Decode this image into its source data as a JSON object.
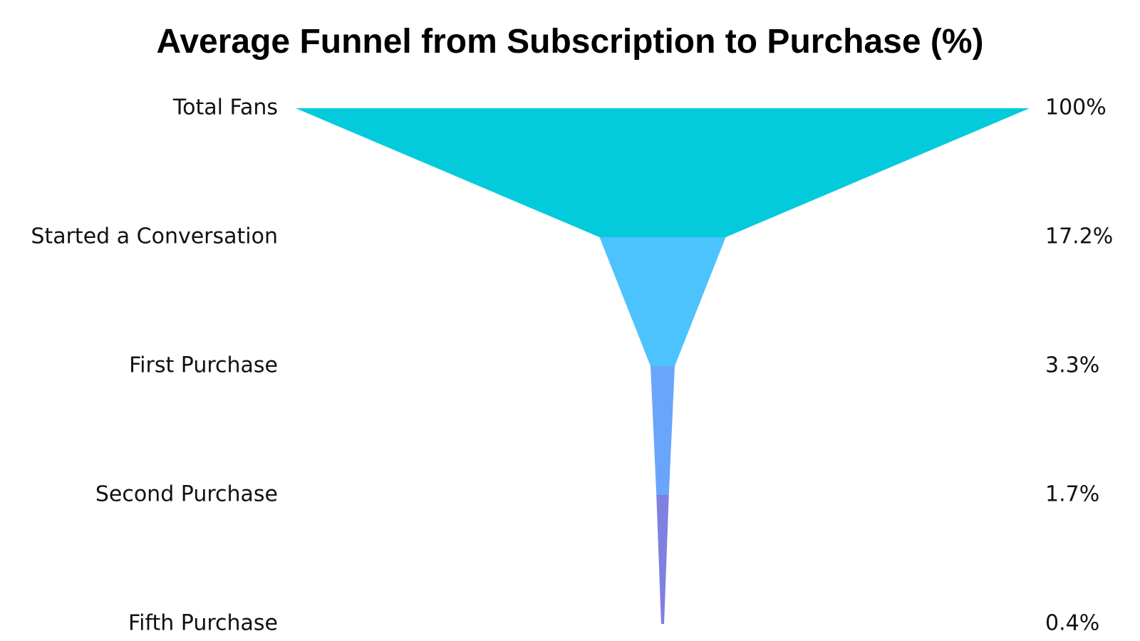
{
  "chart_data": {
    "type": "funnel",
    "title": "Average Funnel from Subscription to Purchase (%)",
    "categories": [
      "Total Fans",
      "Started a Conversation",
      "First Purchase",
      "Second Purchase",
      "Fifth Purchase"
    ],
    "values": [
      100,
      17.2,
      3.3,
      1.7,
      0.4
    ],
    "value_labels": [
      "100%",
      "17.2%",
      "3.3%",
      "1.7%",
      "0.4%"
    ],
    "colors": [
      "#04CBDC",
      "#4CC3FD",
      "#69A5FB",
      "#7F80E0"
    ],
    "grid": false,
    "legend": "none"
  }
}
